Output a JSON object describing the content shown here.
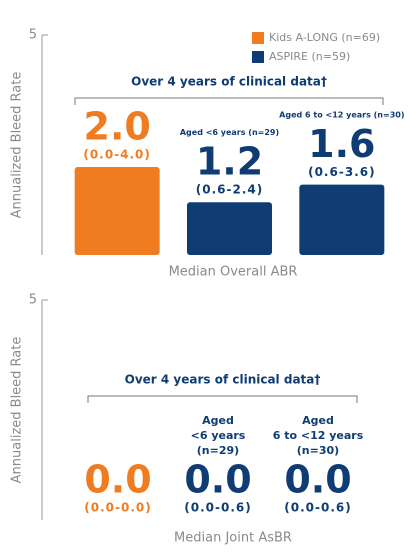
{
  "chart_data": [
    {
      "type": "bar",
      "y_label": "Annualized Bleed Rate",
      "x_label": "Median Overall ABR",
      "bracket_label": "Over 4 years of clinical data†",
      "categories": [
        null,
        "Aged <6 years (n=29)",
        "Aged 6 to <12 years (n=30)"
      ],
      "ylim": [
        0,
        5
      ],
      "yticks": [
        5
      ],
      "legend": "top-right",
      "series": [
        {
          "name": "Kids A-LONG (n=69)",
          "color": "#f07c22",
          "values": [
            2.0,
            null,
            null
          ],
          "value_labels": [
            "2.0",
            null,
            null
          ],
          "range_labels": [
            "(0.0-4.0)",
            null,
            null
          ]
        },
        {
          "name": "ASPIRE (n=59)",
          "color": "#0f3c73",
          "values": [
            null,
            1.2,
            1.6
          ],
          "value_labels": [
            null,
            "1.2",
            "1.6"
          ],
          "range_labels": [
            null,
            "(0.6-2.4)",
            "(0.6-3.6)"
          ]
        }
      ]
    },
    {
      "type": "bar",
      "y_label": "Annualized Bleed Rate",
      "x_label": "Median Joint AsBR",
      "bracket_label": "Over 4 years of clinical data†",
      "categories": [
        null,
        "Aged\n<6 years\n(n=29)",
        "Aged\n6 to <12 years\n(n=30)"
      ],
      "ylim": [
        0,
        5
      ],
      "yticks": [
        5
      ],
      "series": [
        {
          "color": "#f07c22",
          "values": [
            0.0,
            null,
            null
          ],
          "value_labels": [
            "0.0",
            null,
            null
          ],
          "range_labels": [
            "(0.0-0.0)",
            null,
            null
          ]
        },
        {
          "color": "#0f3c73",
          "values": [
            null,
            0.0,
            0.0
          ],
          "value_labels": [
            null,
            "0.0",
            "0.0"
          ],
          "range_labels": [
            null,
            "(0.0-0.6)",
            "(0.0-0.6)"
          ]
        }
      ]
    }
  ]
}
